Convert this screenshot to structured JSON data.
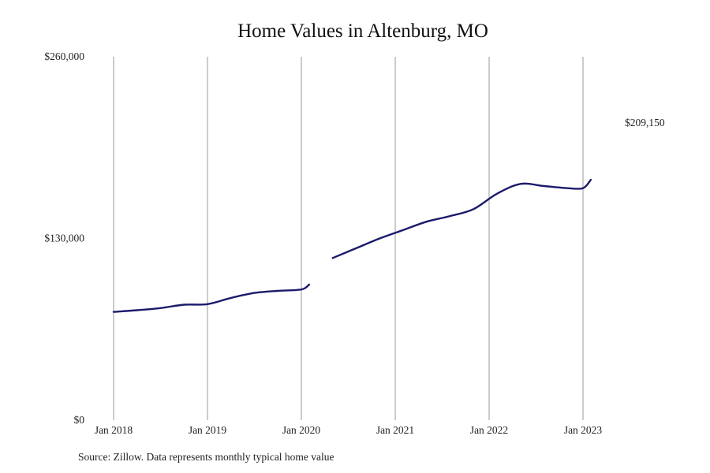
{
  "chart_data": {
    "type": "line",
    "title": "Home Values in Altenburg, MO",
    "xlabel": "",
    "ylabel": "",
    "x_range": [
      "2018-01",
      "2023-02"
    ],
    "ylim": [
      0,
      260000
    ],
    "y_ticks": [
      {
        "value": 0,
        "label": "$0"
      },
      {
        "value": 130000,
        "label": "$130,000"
      },
      {
        "value": 260000,
        "label": "$260,000"
      }
    ],
    "x_ticks": [
      {
        "date": "2018-01",
        "label": "Jan 2018"
      },
      {
        "date": "2019-01",
        "label": "Jan 2019"
      },
      {
        "date": "2020-01",
        "label": "Jan 2020"
      },
      {
        "date": "2021-01",
        "label": "Jan 2021"
      },
      {
        "date": "2022-01",
        "label": "Jan 2022"
      },
      {
        "date": "2023-01",
        "label": "Jan 2023"
      }
    ],
    "grid": "vertical lines at x ticks",
    "line_color": "#1b1b6b",
    "series": [
      {
        "segments": [
          [
            [
              "2018-01",
              77500
            ],
            [
              "2018-04",
              78700
            ],
            [
              "2018-07",
              80200
            ],
            [
              "2018-10",
              82600
            ],
            [
              "2019-01",
              83000
            ],
            [
              "2019-04",
              87500
            ],
            [
              "2019-07",
              91000
            ],
            [
              "2019-10",
              92500
            ],
            [
              "2020-01",
              93500
            ],
            [
              "2020-02",
              97000
            ]
          ],
          [
            [
              "2020-05",
              116000
            ],
            [
              "2020-08",
              123000
            ],
            [
              "2020-11",
              130000
            ],
            [
              "2021-02",
              136000
            ],
            [
              "2021-05",
              142000
            ],
            [
              "2021-08",
              146000
            ],
            [
              "2021-11",
              151000
            ],
            [
              "2022-02",
              162000
            ],
            [
              "2022-05",
              169000
            ],
            [
              "2022-08",
              167500
            ],
            [
              "2022-11",
              166000
            ],
            [
              "2023-01",
              166000
            ],
            [
              "2023-02",
              172000
            ]
          ]
        ]
      }
    ],
    "annotation": "$209,150"
  },
  "source": "Source: Zillow. Data represents monthly typical home value"
}
